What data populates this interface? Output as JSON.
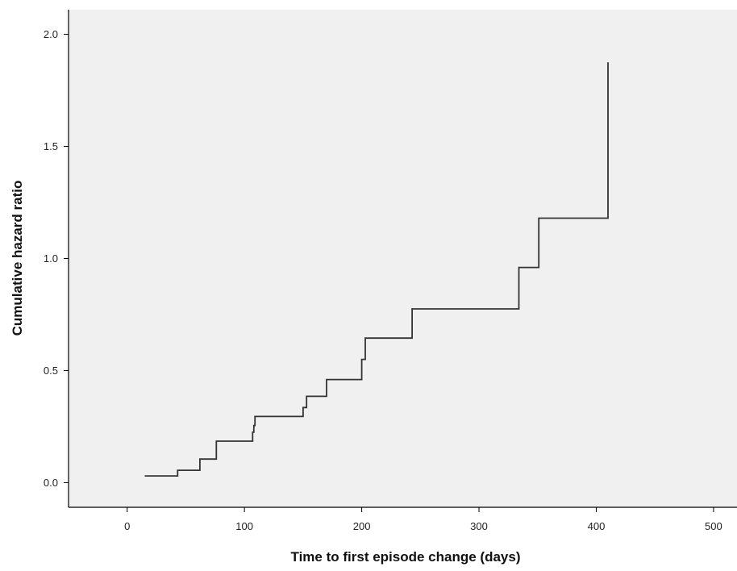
{
  "chart_data": {
    "type": "line",
    "step": "post",
    "title": "",
    "xlabel": "Time to first episode change (days)",
    "ylabel": "Cumulative hazard ratio",
    "xlim": [
      -50,
      520
    ],
    "ylim": [
      -0.11,
      2.11
    ],
    "xticks": [
      0,
      100,
      200,
      300,
      400,
      500
    ],
    "yticks": [
      0.0,
      0.5,
      1.0,
      1.5,
      2.0
    ],
    "xtick_labels": [
      "0",
      "100",
      "200",
      "300",
      "400",
      "500"
    ],
    "ytick_labels": [
      "0.0",
      "0.5",
      "1.0",
      "1.5",
      "2.0"
    ],
    "grid": false,
    "legend": "none",
    "series": [
      {
        "x": [
          15,
          43,
          62,
          76,
          107,
          108,
          109,
          150,
          153,
          170,
          200,
          203,
          243,
          334,
          351,
          410
        ],
        "values": [
          0.03,
          0.055,
          0.105,
          0.185,
          0.225,
          0.255,
          0.295,
          0.335,
          0.385,
          0.46,
          0.55,
          0.645,
          0.775,
          0.96,
          1.18,
          1.875
        ]
      }
    ],
    "colors": {
      "plot_background": "#f0f0f0",
      "line": "#333333",
      "axis": "#000000"
    }
  }
}
